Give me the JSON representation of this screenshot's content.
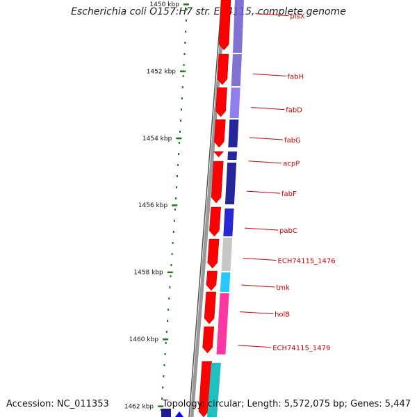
{
  "title": "Escherichia coli O157:H7 str. EC4115, complete genome",
  "footer": {
    "accession": "Accession: NC_011353",
    "topology": "Topology: circular; Length: 5,572,075 bp; Genes: 5,447"
  },
  "ruler": {
    "unit": "kbp",
    "ticks": [
      {
        "label": "1450 kbp",
        "pos": 1450
      },
      {
        "label": "1452 kbp",
        "pos": 1452
      },
      {
        "label": "1454 kbp",
        "pos": 1454
      },
      {
        "label": "1456 kbp",
        "pos": 1456
      },
      {
        "label": "1458 kbp",
        "pos": 1458
      },
      {
        "label": "1460 kbp",
        "pos": 1460
      },
      {
        "label": "1462 kbp",
        "pos": 1462
      }
    ]
  },
  "genes": [
    {
      "label": "plsX",
      "color": "#6a5acd",
      "pos": 1450.2
    },
    {
      "label": "fabH",
      "color": "#6a5acd",
      "pos": 1452.0
    },
    {
      "label": "fabD",
      "color": "#7b68ee",
      "pos": 1453.0
    },
    {
      "label": "fabG",
      "color": "#00008b",
      "pos": 1453.9
    },
    {
      "label": "acpP",
      "color": "#00008b",
      "pos": 1454.6
    },
    {
      "label": "fabF",
      "color": "#00008b",
      "pos": 1455.5
    },
    {
      "label": "pabC",
      "color": "#0000cd",
      "pos": 1456.6
    },
    {
      "label": "ECH74115_1476",
      "color": "#bdbdbd",
      "pos": 1457.5
    },
    {
      "label": "tmk",
      "color": "#00bfff",
      "pos": 1458.3
    },
    {
      "label": "holB",
      "color": "#ff1493",
      "pos": 1459.1
    },
    {
      "label": "ECH74115_1479",
      "color": "#ff1493",
      "pos": 1460.1
    }
  ],
  "colors": {
    "forward_strand": "#ff0000",
    "label_color": "#cc0000",
    "tick_color": "#1a7a1a",
    "backbone": "#777777"
  }
}
